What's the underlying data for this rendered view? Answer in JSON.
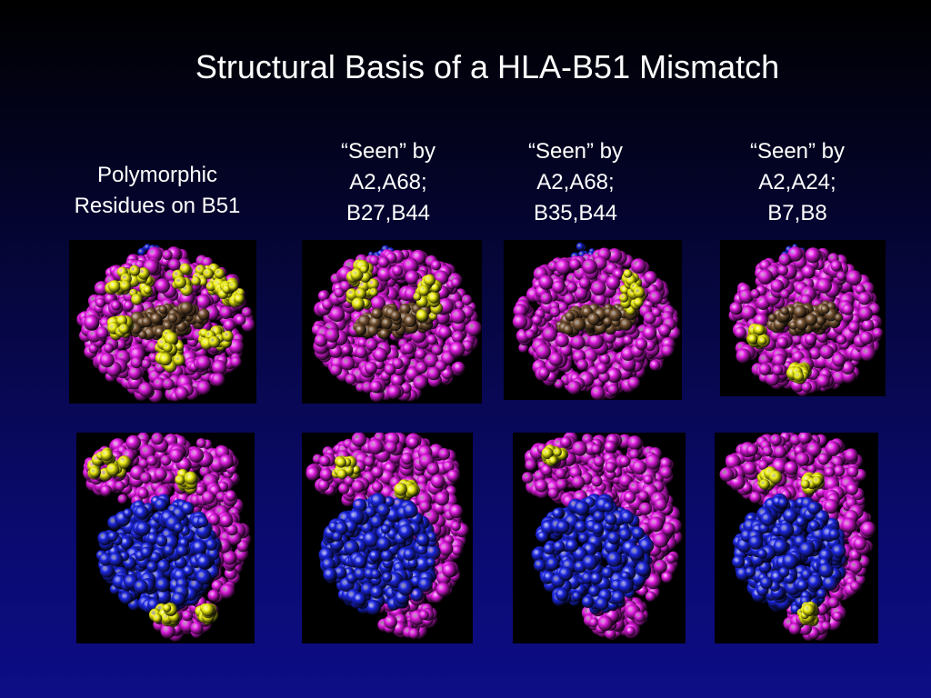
{
  "slide": {
    "title": "Structural Basis of a HLA-B51 Mismatch",
    "columns": [
      {
        "lines": [
          "Polymorphic",
          "Residues on B51"
        ]
      },
      {
        "lines": [
          "“Seen” by",
          "A2,A68;",
          "B27,B44"
        ]
      },
      {
        "lines": [
          "“Seen” by",
          "A2,A68;",
          "B35,B44"
        ]
      },
      {
        "lines": [
          "“Seen” by",
          "A2,A24;",
          "B7,B8"
        ]
      }
    ]
  },
  "colors": {
    "hla_heavy_chain": "#e61ee6",
    "polymorphic_residue": "#f0f014",
    "peptide": "#7a5634",
    "beta2_microglobulin": "#1e28e6",
    "panel_background": "#000000"
  }
}
